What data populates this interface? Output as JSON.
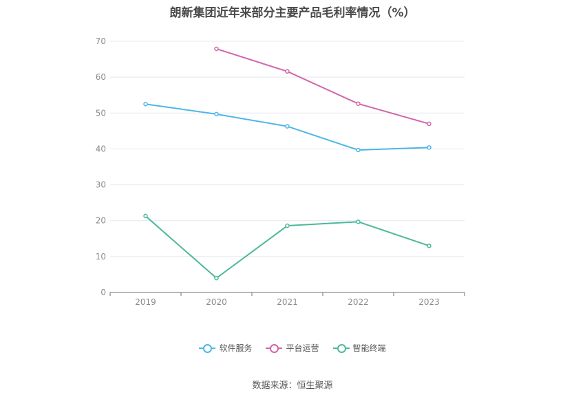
{
  "chart_data": {
    "type": "line",
    "title": "朗新集团近年来部分主要产品毛利率情况（%）",
    "categories": [
      "2019",
      "2020",
      "2021",
      "2022",
      "2023"
    ],
    "ylim": [
      0,
      70
    ],
    "yticks": [
      0,
      10,
      20,
      30,
      40,
      50,
      60,
      70
    ],
    "grid": true,
    "legend_position": "bottom",
    "xlabel": "",
    "ylabel": "",
    "series": [
      {
        "name": "软件服务",
        "color": "#4db6e8",
        "values": [
          52.5,
          49.7,
          46.3,
          39.7,
          40.4
        ]
      },
      {
        "name": "平台运营",
        "color": "#d066a8",
        "values": [
          null,
          67.9,
          61.6,
          52.6,
          47.0
        ]
      },
      {
        "name": "智能终端",
        "color": "#4cb89a",
        "values": [
          21.3,
          4.0,
          18.6,
          19.7,
          13.0
        ]
      }
    ]
  },
  "source": "数据来源：恒生聚源"
}
